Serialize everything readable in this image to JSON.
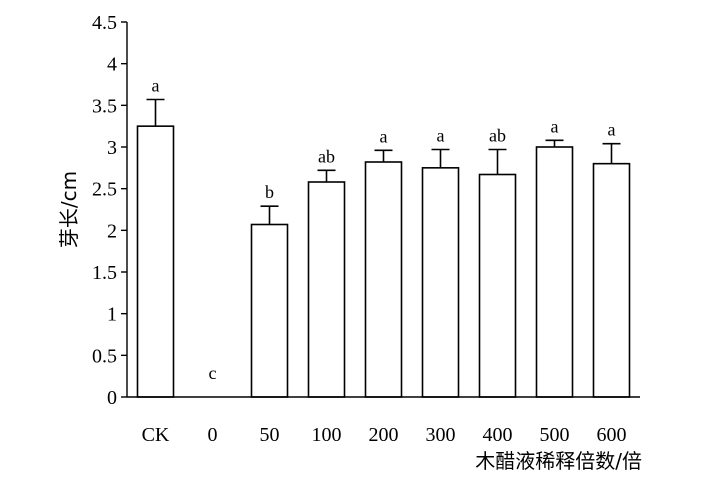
{
  "chart_data": {
    "type": "bar",
    "categories": [
      "CK",
      "0",
      "50",
      "100",
      "200",
      "300",
      "400",
      "500",
      "600"
    ],
    "values": [
      3.25,
      0,
      2.07,
      2.58,
      2.82,
      2.75,
      2.67,
      3.0,
      2.8
    ],
    "errors": [
      0.32,
      0,
      0.22,
      0.14,
      0.14,
      0.22,
      0.3,
      0.08,
      0.24
    ],
    "significance": [
      "a",
      "c",
      "b",
      "ab",
      "a",
      "a",
      "ab",
      "a",
      "a"
    ],
    "ylabel": "芽长/cm",
    "xlabel": "木醋液稀释倍数/倍",
    "ylim": [
      0,
      4.5
    ],
    "yticks": [
      "0",
      "0.5",
      "1",
      "1.5",
      "2",
      "2.5",
      "3",
      "3.5",
      "4",
      "4.5"
    ],
    "bar_color": "#ffffff",
    "edge_color": "#000000",
    "grid": false
  }
}
